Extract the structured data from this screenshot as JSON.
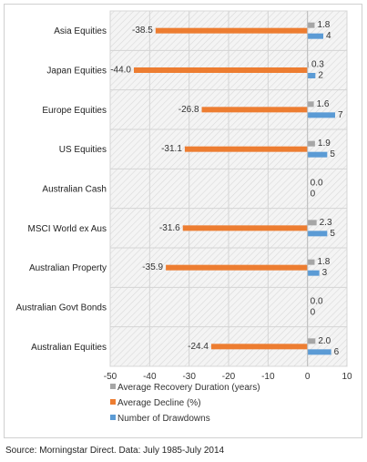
{
  "chart_data": {
    "type": "bar",
    "orientation": "horizontal",
    "categories": [
      "Asia Equities",
      "Japan Equities",
      "Europe Equities",
      "US Equities",
      "Australian Cash",
      "MSCI World ex Aus",
      "Australian Property",
      "Australian Govt Bonds",
      "Australian Equities"
    ],
    "series": [
      {
        "name": "Average Recovery Duration (years)",
        "color": "#a6a6a6",
        "values": [
          1.8,
          0.3,
          1.6,
          1.9,
          0.0,
          2.3,
          1.8,
          0.0,
          2.0
        ],
        "labels": [
          "1.8",
          "0.3",
          "1.6",
          "1.9",
          "0.0",
          "2.3",
          "1.8",
          "0.0",
          "2.0"
        ]
      },
      {
        "name": "Average Decline (%)",
        "color": "#ed7d31",
        "values": [
          -38.5,
          -44.0,
          -26.8,
          -31.1,
          0,
          -31.6,
          -35.9,
          0,
          -24.4
        ],
        "labels": [
          "-38.5",
          "-44.0",
          "-26.8",
          "-31.1",
          "",
          "-31.6",
          "-35.9",
          "",
          "-24.4"
        ]
      },
      {
        "name": "Number of Drawdowns",
        "color": "#5b9bd5",
        "values": [
          4,
          2,
          7,
          5,
          0,
          5,
          3,
          0,
          6
        ],
        "labels": [
          "4",
          "2",
          "7",
          "5",
          "0",
          "5",
          "3",
          "0",
          "6"
        ]
      }
    ],
    "xlim": [
      -50,
      10
    ],
    "xticks": [
      "-50",
      "-40",
      "-30",
      "-20",
      "-10",
      "0",
      "10"
    ],
    "xlabel": "",
    "ylabel": "",
    "title": "",
    "grid": true,
    "legend_placement": "bottom-left"
  },
  "source": "Source: Morningstar Direct. Data: July 1985-July 2014"
}
